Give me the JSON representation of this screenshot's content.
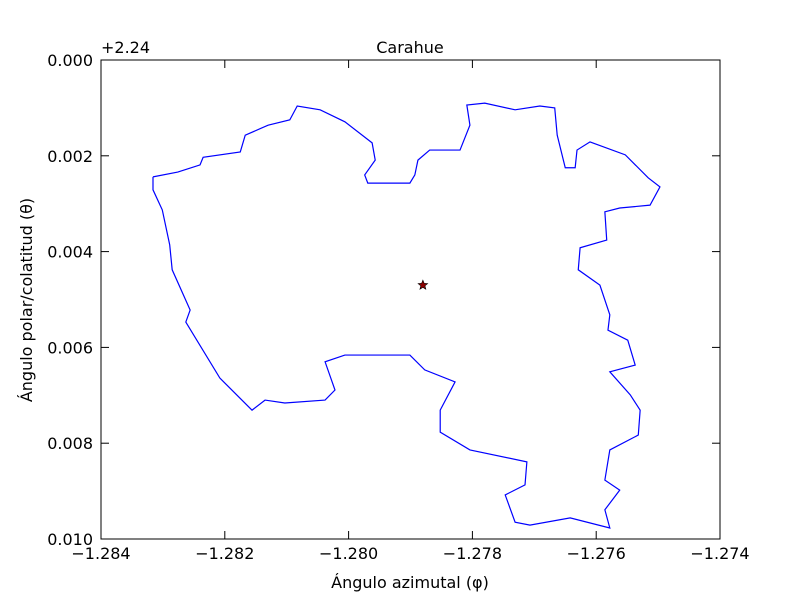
{
  "chart_data": {
    "type": "line",
    "title": "Carahue",
    "xlabel": "Ángulo azimutal (φ)",
    "ylabel": "Ángulo polar/colatitud (θ)",
    "y_offset_label": "+2.24",
    "y_inverted": true,
    "xlim": [
      -1.284,
      -1.274
    ],
    "ylim": [
      0,
      0.01
    ],
    "xticks": [
      {
        "value": -1.284,
        "label": "−1.284"
      },
      {
        "value": -1.282,
        "label": "−1.282"
      },
      {
        "value": -1.28,
        "label": "−1.280"
      },
      {
        "value": -1.278,
        "label": "−1.278"
      },
      {
        "value": -1.276,
        "label": "−1.276"
      },
      {
        "value": -1.274,
        "label": "−1.274"
      }
    ],
    "yticks": [
      {
        "value": 0,
        "label": "0.000"
      },
      {
        "value": 0.002,
        "label": "0.002"
      },
      {
        "value": 0.004,
        "label": "0.004"
      },
      {
        "value": 0.006,
        "label": "0.006"
      },
      {
        "value": 0.008,
        "label": "0.008"
      },
      {
        "value": 0.01,
        "label": "0.010"
      }
    ],
    "series": [
      {
        "color": "#0000ff",
        "x": [
          -1.28316,
          -1.28276,
          -1.2824,
          -1.28235,
          -1.28175,
          -1.28167,
          -1.2813,
          -1.28095,
          -1.28083,
          -1.28046,
          -1.28006,
          -1.27962,
          -1.27957,
          -1.27974,
          -1.27969,
          -1.27901,
          -1.27893,
          -1.27888,
          -1.27869,
          -1.2782,
          -1.27804,
          -1.27809,
          -1.2778,
          -1.27731,
          -1.27691,
          -1.27667,
          -1.27663,
          -1.2765,
          -1.27634,
          -1.27631,
          -1.2761,
          -1.27553,
          -1.27516,
          -1.27497,
          -1.27513,
          -1.27562,
          -1.27586,
          -1.27583,
          -1.27626,
          -1.27629,
          -1.27594,
          -1.27578,
          -1.27581,
          -1.27549,
          -1.27537,
          -1.27578,
          -1.27545,
          -1.27529,
          -1.27532,
          -1.27578,
          -1.27586,
          -1.27562,
          -1.27586,
          -1.27578,
          -1.27642,
          -1.27707,
          -1.27731,
          -1.27747,
          -1.27715,
          -1.27712,
          -1.27804,
          -1.27852,
          -1.27852,
          -1.27828,
          -1.27877,
          -1.27901,
          -1.27957,
          -1.28006,
          -1.28038,
          -1.28022,
          -1.28038,
          -1.28103,
          -1.28135,
          -1.28156,
          -1.28208,
          -1.28263,
          -1.28256,
          -1.28285,
          -1.28289,
          -1.28301,
          -1.28316,
          -1.28316
        ],
        "values": [
          0.00244,
          0.00234,
          0.00219,
          0.00203,
          0.00192,
          0.00157,
          0.00136,
          0.00125,
          0.00096,
          0.00104,
          0.00129,
          0.00173,
          0.00209,
          0.0024,
          0.00257,
          0.00257,
          0.0024,
          0.00209,
          0.00188,
          0.00188,
          0.00136,
          0.00094,
          0.0009,
          0.00104,
          0.00096,
          0.001,
          0.00157,
          0.00225,
          0.00225,
          0.00188,
          0.00171,
          0.00198,
          0.00246,
          0.00265,
          0.00303,
          0.00309,
          0.00317,
          0.00376,
          0.00392,
          0.00438,
          0.0047,
          0.00532,
          0.00564,
          0.00585,
          0.00637,
          0.00651,
          0.00699,
          0.00731,
          0.00783,
          0.00814,
          0.00877,
          0.00898,
          0.00939,
          0.00977,
          0.00956,
          0.00971,
          0.00965,
          0.00908,
          0.00887,
          0.00839,
          0.00814,
          0.00777,
          0.00731,
          0.00672,
          0.00647,
          0.00616,
          0.00616,
          0.00616,
          0.0063,
          0.00689,
          0.0071,
          0.00716,
          0.0071,
          0.00731,
          0.00664,
          0.00547,
          0.00522,
          0.00438,
          0.00386,
          0.00313,
          0.00271,
          0.00244
        ]
      }
    ],
    "marker": {
      "x": -1.2788,
      "y": 0.0047,
      "color": "#8b0000",
      "shape": "star"
    }
  }
}
